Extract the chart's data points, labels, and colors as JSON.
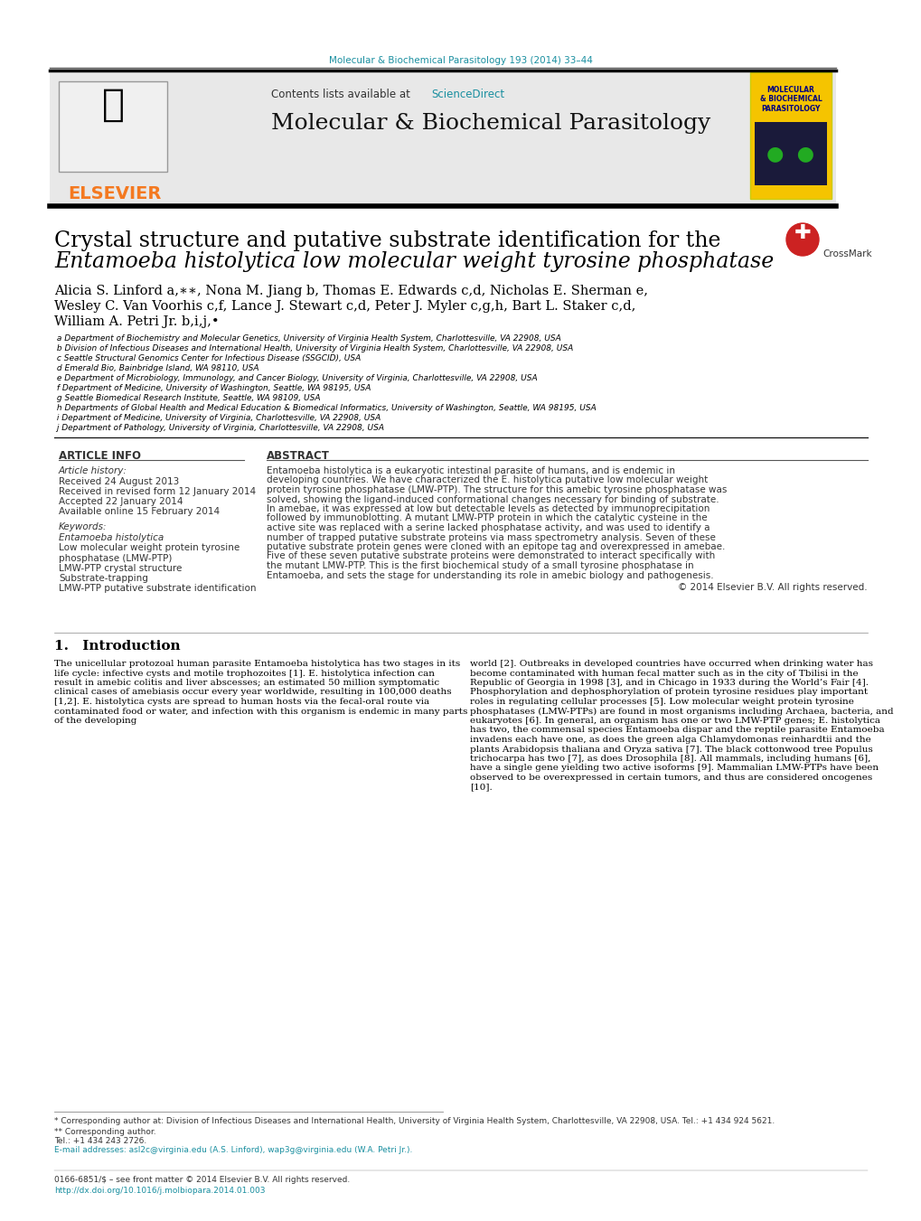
{
  "page_color": "#ffffff",
  "top_journal_line": "Molecular & Biochemical Parasitology 193 (2014) 33–44",
  "top_journal_color": "#1a8fa0",
  "header_bg_color": "#e8e8e8",
  "contents_line": "Contents lists available at",
  "sciencedirect_text": "ScienceDirect",
  "sciencedirect_color": "#1a8fa0",
  "journal_name": "Molecular & Biochemical Parasitology",
  "journal_name_color": "#000000",
  "elsevier_color": "#f47920",
  "divider_color": "#1a1a1a",
  "article_title_line1": "Crystal structure and putative substrate identification for the",
  "article_title_line2": "Entamoeba histolytica low molecular weight tyrosine phosphatase",
  "title_color": "#000000",
  "authors": "Alicia S. Linford a,∗∗, Nona M. Jiang b, Thomas E. Edwards c,d, Nicholas E. Sherman e,\nWesley C. Van Voorhis c,f, Lance J. Stewart c,d, Peter J. Myler c,g,h, Bart L. Staker c,d,\nWilliam A. Petri Jr. b,i,j,•",
  "authors_color": "#000000",
  "affil_a": " a Department of Biochemistry and Molecular Genetics, University of Virginia Health System, Charlottesville, VA 22908, USA",
  "affil_b": " b Division of Infectious Diseases and International Health, University of Virginia Health System, Charlottesville, VA 22908, USA",
  "affil_c": " c Seattle Structural Genomics Center for Infectious Disease (SSGCID), USA",
  "affil_d": " d Emerald Bio, Bainbridge Island, WA 98110, USA",
  "affil_e": " e Department of Microbiology, Immunology, and Cancer Biology, University of Virginia, Charlottesville, VA 22908, USA",
  "affil_f": " f Department of Medicine, University of Washington, Seattle, WA 98195, USA",
  "affil_g": " g Seattle Biomedical Research Institute, Seattle, WA 98109, USA",
  "affil_h": " h Departments of Global Health and Medical Education & Biomedical Informatics, University of Washington, Seattle, WA 98195, USA",
  "affil_i": " i Department of Medicine, University of Virginia, Charlottesville, VA 22908, USA",
  "affil_j": " j Department of Pathology, University of Virginia, Charlottesville, VA 22908, USA",
  "affil_color": "#000000",
  "left_col_header": "ARTICLE INFO",
  "right_col_header": "ABSTRACT",
  "article_history_label": "Article history:",
  "received": "Received 24 August 2013",
  "revised": "Received in revised form 12 January 2014",
  "accepted": "Accepted 22 January 2014",
  "available": "Available online 15 February 2014",
  "keywords_label": "Keywords:",
  "keyword1": "Entamoeba histolytica",
  "keyword2": "Low molecular weight protein tyrosine\nphosphatase (LMW-PTP)",
  "keyword3": "LMW-PTP crystal structure",
  "keyword4": "Substrate-trapping",
  "keyword5": "LMW-PTP putative substrate identification",
  "abstract_text": "Entamoeba histolytica is a eukaryotic intestinal parasite of humans, and is endemic in developing countries. We have characterized the E. histolytica putative low molecular weight protein tyrosine phosphatase (LMW-PTP). The structure for this amebic tyrosine phosphatase was solved, showing the ligand-induced conformational changes necessary for binding of substrate. In amebae, it was expressed at low but detectable levels as detected by immunoprecipitation followed by immunoblotting. A mutant LMW-PTP protein in which the catalytic cysteine in the active site was replaced with a serine lacked phosphatase activity, and was used to identify a number of trapped putative substrate proteins via mass spectrometry analysis. Seven of these putative substrate protein genes were cloned with an epitope tag and overexpressed in amebae. Five of these seven putative substrate proteins were demonstrated to interact specifically with the mutant LMW-PTP. This is the first biochemical study of a small tyrosine phosphatase in Entamoeba, and sets the stage for understanding its role in amebic biology and pathogenesis.",
  "copyright_line": "© 2014 Elsevier B.V. All rights reserved.",
  "intro_header": "1. Introduction",
  "intro_col1": "The unicellular protozoal human parasite Entamoeba histolytica has two stages in its life cycle: infective cysts and motile trophozoites [1]. E. histolytica infection can result in amebic colitis and liver abscesses; an estimated 50 million symptomatic clinical cases of amebiasis occur every year worldwide, resulting in 100,000 deaths [1,2]. E. histolytica cysts are spread to human hosts via the fecal-oral route via contaminated food or water, and infection with this organism is endemic in many parts of the developing",
  "intro_col2": "world [2]. Outbreaks in developed countries have occurred when drinking water has become contaminated with human fecal matter such as in the city of Tbilisi in the Republic of Georgia in 1998 [3], and in Chicago in 1933 during the World’s Fair [4].\n    Phosphorylation and dephosphorylation of protein tyrosine residues play important roles in regulating cellular processes [5]. Low molecular weight protein tyrosine phosphatases (LMW-PTPs) are found in most organisms including Archaea, bacteria, and eukaryotes [6]. In general, an organism has one or two LMW-PTP genes; E. histolytica has two, the commensal species Entamoeba dispar and the reptile parasite Entamoeba invadens each have one, as does the green alga Chlamydomonas reinhardtii and the plants Arabidopsis thaliana and Oryza sativa [7]. The black cottonwood tree Populus trichocarpa has two [7], as does Drosophila [8]. All mammals, including humans [6], have a single gene yielding two active isoforms [9]. Mammalian LMW-PTPs have been observed to be overexpressed in certain tumors, and thus are considered oncogenes [10].",
  "footnote1": "* Corresponding author at: Division of Infectious Diseases and International Health, University of Virginia Health System, Charlottesville, VA 22908, USA. Tel.: +1 434 924 5621.",
  "footnote2": "** Corresponding author.",
  "footnote3": "Tel.: +1 434 243 2726.",
  "footnote4": "E-mail addresses: asl2c@virginia.edu (A.S. Linford), wap3g@virginia.edu (W.A. Petri Jr.).",
  "footer_line": "0166-6851/$ – see front matter © 2014 Elsevier B.V. All rights reserved.\nhttp://dx.doi.org/10.1016/j.molbiopara.2014.01.003",
  "footer_link_color": "#1a8fa0"
}
